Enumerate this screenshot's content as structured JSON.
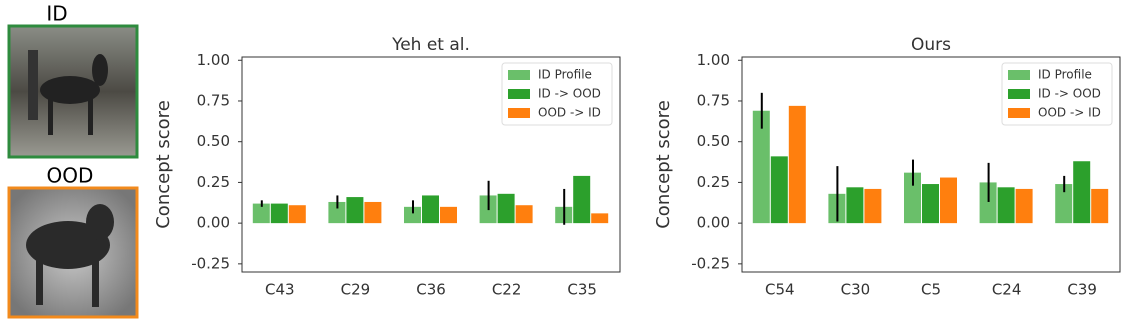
{
  "image_labels": [
    "ID",
    "OOD"
  ],
  "chart_data": [
    {
      "type": "bar",
      "title": "Yeh et al.",
      "y_label": "Concept score",
      "categories": [
        "C43",
        "C29",
        "C36",
        "C22",
        "C35"
      ],
      "series": [
        {
          "name": "ID Profile",
          "color": "#6abf6a",
          "values": [
            0.12,
            0.13,
            0.1,
            0.17,
            0.1
          ],
          "errors": [
            0.02,
            0.04,
            0.04,
            0.09,
            0.11
          ]
        },
        {
          "name": "ID -> OOD",
          "color": "#2ca02c",
          "values": [
            0.12,
            0.16,
            0.17,
            0.18,
            0.29
          ]
        },
        {
          "name": "OOD -> ID",
          "color": "#ff7f0e",
          "values": [
            0.11,
            0.13,
            0.1,
            0.11,
            0.06
          ]
        }
      ],
      "ylim": [
        -0.3,
        1.02
      ],
      "yticks": [
        {
          "value": -0.25,
          "label": "-0.25"
        },
        {
          "value": 0,
          "label": "0.00"
        },
        {
          "value": 0.25,
          "label": "0.25"
        },
        {
          "value": 0.5,
          "label": "0.50"
        },
        {
          "value": 0.75,
          "label": "0.75"
        },
        {
          "value": 1,
          "label": "1.00"
        }
      ],
      "legend": "upper right"
    },
    {
      "type": "bar",
      "title": "Ours",
      "y_label": "Concept score",
      "categories": [
        "C54",
        "C30",
        "C5",
        "C24",
        "C39"
      ],
      "series": [
        {
          "name": "ID Profile",
          "color": "#6abf6a",
          "values": [
            0.69,
            0.18,
            0.31,
            0.25,
            0.24
          ],
          "errors": [
            0.11,
            0.17,
            0.08,
            0.12,
            0.05
          ]
        },
        {
          "name": "ID -> OOD",
          "color": "#2ca02c",
          "values": [
            0.41,
            0.22,
            0.24,
            0.22,
            0.38
          ]
        },
        {
          "name": "OOD -> ID",
          "color": "#ff7f0e",
          "values": [
            0.72,
            0.21,
            0.28,
            0.21,
            0.21
          ]
        }
      ],
      "ylim": [
        -0.3,
        1.02
      ],
      "yticks": [
        {
          "value": -0.25,
          "label": "-0.25"
        },
        {
          "value": 0,
          "label": "0.00"
        },
        {
          "value": 0.25,
          "label": "0.25"
        },
        {
          "value": 0.5,
          "label": "0.50"
        },
        {
          "value": 0.75,
          "label": "0.75"
        },
        {
          "value": 1,
          "label": "1.00"
        }
      ],
      "legend": "upper right"
    }
  ]
}
